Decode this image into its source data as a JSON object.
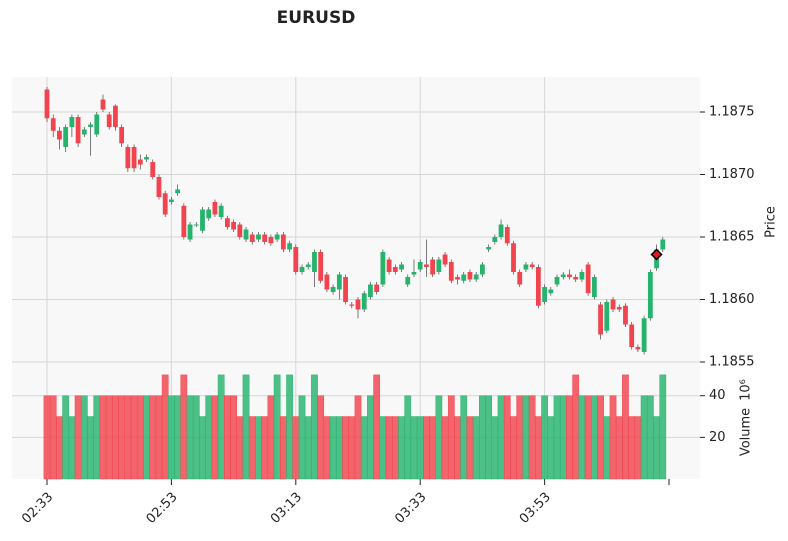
{
  "chart_data": {
    "type": "candlestick",
    "title": "EURUSD",
    "y_label": "Price",
    "volume_label": "Volume",
    "volume_exponent": "10⁶",
    "up_color": "#26b36d",
    "down_color": "#f2444e",
    "marker_color": "#e31a1c",
    "grid": true,
    "categories": [
      "02:33",
      null,
      null,
      null,
      null,
      null,
      null,
      null,
      null,
      null,
      null,
      null,
      null,
      null,
      null,
      null,
      null,
      null,
      null,
      null,
      "02:53",
      null,
      null,
      null,
      null,
      null,
      null,
      null,
      null,
      null,
      null,
      null,
      null,
      null,
      null,
      null,
      null,
      null,
      null,
      null,
      "03:13",
      null,
      null,
      null,
      null,
      null,
      null,
      null,
      null,
      null,
      null,
      null,
      null,
      null,
      null,
      null,
      null,
      null,
      null,
      null,
      "03:33",
      null,
      null,
      null,
      null,
      null,
      null,
      null,
      null,
      null,
      null,
      null,
      null,
      null,
      null,
      null,
      null,
      null,
      null,
      null,
      "03:53",
      null,
      null,
      null,
      null,
      null,
      null,
      null,
      null,
      null,
      null,
      null,
      null,
      null,
      null,
      null,
      null,
      null,
      null,
      null
    ],
    "ohlc": [
      [
        1.18768,
        1.1877,
        1.18742,
        1.18745
      ],
      [
        1.18745,
        1.18748,
        1.1873,
        1.18735
      ],
      [
        1.18735,
        1.18738,
        1.1872,
        1.18728
      ],
      [
        1.18722,
        1.1874,
        1.18718,
        1.18738
      ],
      [
        1.18738,
        1.18748,
        1.1873,
        1.18746
      ],
      [
        1.18746,
        1.18748,
        1.18722,
        1.18725
      ],
      [
        1.18732,
        1.18738,
        1.1873,
        1.18736
      ],
      [
        1.18738,
        1.18742,
        1.18715,
        1.1874
      ],
      [
        1.18732,
        1.1875,
        1.1873,
        1.18748
      ],
      [
        1.1876,
        1.18764,
        1.1875,
        1.18752
      ],
      [
        1.18748,
        1.1875,
        1.18736,
        1.18738
      ],
      [
        1.18755,
        1.18756,
        1.18735,
        1.18738
      ],
      [
        1.18738,
        1.1874,
        1.18722,
        1.18725
      ],
      [
        1.18722,
        1.18724,
        1.18702,
        1.18705
      ],
      [
        1.18722,
        1.18724,
        1.18702,
        1.18705
      ],
      [
        1.18712,
        1.18716,
        1.18704,
        1.18708
      ],
      [
        1.18712,
        1.18716,
        1.1871,
        1.18714
      ],
      [
        1.1871,
        1.18712,
        1.18696,
        1.18698
      ],
      [
        1.18698,
        1.187,
        1.1868,
        1.18682
      ],
      [
        1.18685,
        1.18687,
        1.18666,
        1.18668
      ],
      [
        1.18678,
        1.18682,
        1.18676,
        1.1868
      ],
      [
        1.18685,
        1.18692,
        1.18683,
        1.18688
      ],
      [
        1.18675,
        1.18677,
        1.18648,
        1.1865
      ],
      [
        1.18648,
        1.18662,
        1.18646,
        1.1866
      ],
      [
        1.1866,
        1.18662,
        1.18658,
        1.1866
      ],
      [
        1.18655,
        1.18674,
        1.18653,
        1.18672
      ],
      [
        1.18665,
        1.18674,
        1.18663,
        1.18672
      ],
      [
        1.18678,
        1.1868,
        1.18666,
        1.18668
      ],
      [
        1.18666,
        1.18677,
        1.18664,
        1.18675
      ],
      [
        1.18665,
        1.18667,
        1.18656,
        1.18658
      ],
      [
        1.18662,
        1.18664,
        1.18654,
        1.18656
      ],
      [
        1.1866,
        1.18662,
        1.18648,
        1.1865
      ],
      [
        1.18648,
        1.18658,
        1.18646,
        1.18656
      ],
      [
        1.18652,
        1.18654,
        1.18644,
        1.18646
      ],
      [
        1.18648,
        1.18654,
        1.18646,
        1.18652
      ],
      [
        1.18652,
        1.18654,
        1.18644,
        1.18646
      ],
      [
        1.1865,
        1.18652,
        1.18643,
        1.18645
      ],
      [
        1.18648,
        1.18654,
        1.18646,
        1.18652
      ],
      [
        1.18652,
        1.18654,
        1.18638,
        1.1864
      ],
      [
        1.1864,
        1.18647,
        1.18638,
        1.18645
      ],
      [
        1.18642,
        1.18644,
        1.1862,
        1.18622
      ],
      [
        1.18622,
        1.18628,
        1.1862,
        1.18626
      ],
      [
        1.18626,
        1.1863,
        1.18624,
        1.18628
      ],
      [
        1.18622,
        1.1864,
        1.1861,
        1.18638
      ],
      [
        1.18638,
        1.1864,
        1.18613,
        1.18615
      ],
      [
        1.1862,
        1.18622,
        1.18606,
        1.18608
      ],
      [
        1.18606,
        1.18612,
        1.18604,
        1.1861
      ],
      [
        1.18608,
        1.18622,
        1.186,
        1.1862
      ],
      [
        1.18618,
        1.1862,
        1.18596,
        1.18598
      ],
      [
        1.18596,
        1.18598,
        1.18593,
        1.18595
      ],
      [
        1.186,
        1.18602,
        1.18585,
        1.18592
      ],
      [
        1.18592,
        1.18607,
        1.1859,
        1.18605
      ],
      [
        1.18602,
        1.18614,
        1.186,
        1.18612
      ],
      [
        1.18612,
        1.18614,
        1.18604,
        1.18606
      ],
      [
        1.18612,
        1.1864,
        1.1861,
        1.18638
      ],
      [
        1.18632,
        1.18634,
        1.1862,
        1.18622
      ],
      [
        1.18626,
        1.18628,
        1.1862,
        1.18622
      ],
      [
        1.18624,
        1.1863,
        1.18622,
        1.18628
      ],
      [
        1.18612,
        1.1862,
        1.1861,
        1.18618
      ],
      [
        1.1862,
        1.18632,
        1.18618,
        1.18622
      ],
      [
        1.18624,
        1.18632,
        1.18622,
        1.1863
      ],
      [
        1.18628,
        1.18648,
        1.18618,
        1.18626
      ],
      [
        1.18632,
        1.18634,
        1.18618,
        1.1862
      ],
      [
        1.18622,
        1.18634,
        1.1862,
        1.18632
      ],
      [
        1.18636,
        1.18638,
        1.18626,
        1.18628
      ],
      [
        1.1863,
        1.18632,
        1.18613,
        1.18615
      ],
      [
        1.18618,
        1.1862,
        1.18612,
        1.18616
      ],
      [
        1.18615,
        1.18622,
        1.18613,
        1.1862
      ],
      [
        1.18622,
        1.18624,
        1.18614,
        1.18616
      ],
      [
        1.18616,
        1.18622,
        1.18614,
        1.1862
      ],
      [
        1.1862,
        1.1863,
        1.18618,
        1.18628
      ],
      [
        1.1864,
        1.18644,
        1.18638,
        1.18642
      ],
      [
        1.18646,
        1.18652,
        1.18644,
        1.1865
      ],
      [
        1.1865,
        1.18664,
        1.18648,
        1.1866
      ],
      [
        1.18658,
        1.1866,
        1.18643,
        1.18645
      ],
      [
        1.18645,
        1.18647,
        1.1862,
        1.18622
      ],
      [
        1.18622,
        1.18624,
        1.1861,
        1.18612
      ],
      [
        1.18624,
        1.1863,
        1.18622,
        1.18628
      ],
      [
        1.18628,
        1.1863,
        1.18624,
        1.18626
      ],
      [
        1.18626,
        1.18628,
        1.18593,
        1.18595
      ],
      [
        1.18598,
        1.18612,
        1.18596,
        1.1861
      ],
      [
        1.18605,
        1.1861,
        1.18603,
        1.18608
      ],
      [
        1.18612,
        1.1862,
        1.1861,
        1.18618
      ],
      [
        1.18618,
        1.18622,
        1.18616,
        1.1862
      ],
      [
        1.1862,
        1.18624,
        1.18616,
        1.18618
      ],
      [
        1.18618,
        1.1862,
        1.18614,
        1.18616
      ],
      [
        1.18616,
        1.18624,
        1.18614,
        1.18622
      ],
      [
        1.18628,
        1.1863,
        1.18603,
        1.18605
      ],
      [
        1.18602,
        1.1862,
        1.186,
        1.18618
      ],
      [
        1.18596,
        1.18598,
        1.18568,
        1.18572
      ],
      [
        1.18575,
        1.186,
        1.18573,
        1.18598
      ],
      [
        1.186,
        1.18602,
        1.1859,
        1.18592
      ],
      [
        1.18594,
        1.18596,
        1.1859,
        1.18592
      ],
      [
        1.18595,
        1.18597,
        1.18578,
        1.1858
      ],
      [
        1.1858,
        1.18582,
        1.1856,
        1.18562
      ],
      [
        1.18562,
        1.18564,
        1.18558,
        1.1856
      ],
      [
        1.18558,
        1.18587,
        1.18556,
        1.18585
      ],
      [
        1.18585,
        1.18624,
        1.18583,
        1.18622
      ],
      [
        1.18625,
        1.18644,
        1.18623,
        1.1864
      ],
      [
        1.1864,
        1.1865,
        1.18638,
        1.18648
      ]
    ],
    "volume": [
      40,
      40,
      30,
      40,
      30,
      40,
      40,
      30,
      40,
      40,
      40,
      40,
      40,
      40,
      40,
      40,
      40,
      40,
      40,
      50,
      40,
      40,
      50,
      40,
      40,
      30,
      40,
      40,
      50,
      40,
      40,
      30,
      50,
      30,
      30,
      30,
      40,
      50,
      30,
      50,
      30,
      40,
      30,
      50,
      40,
      30,
      30,
      30,
      30,
      30,
      40,
      30,
      40,
      50,
      30,
      30,
      30,
      30,
      40,
      30,
      30,
      30,
      30,
      40,
      30,
      40,
      30,
      40,
      30,
      30,
      40,
      40,
      30,
      40,
      40,
      30,
      40,
      40,
      40,
      30,
      40,
      30,
      40,
      40,
      40,
      50,
      40,
      40,
      40,
      40,
      30,
      40,
      30,
      50,
      30,
      30,
      40,
      40,
      30,
      50
    ],
    "markers": [
      null,
      null,
      null,
      null,
      null,
      null,
      null,
      null,
      null,
      null,
      null,
      null,
      null,
      null,
      null,
      null,
      null,
      null,
      null,
      null,
      null,
      null,
      null,
      null,
      null,
      null,
      null,
      null,
      null,
      null,
      null,
      null,
      null,
      null,
      null,
      null,
      null,
      null,
      null,
      null,
      null,
      null,
      null,
      null,
      null,
      null,
      null,
      null,
      null,
      null,
      null,
      null,
      null,
      null,
      null,
      null,
      null,
      null,
      null,
      null,
      null,
      null,
      null,
      null,
      null,
      null,
      null,
      null,
      null,
      null,
      null,
      null,
      null,
      null,
      null,
      null,
      null,
      null,
      null,
      null,
      null,
      null,
      null,
      null,
      null,
      null,
      null,
      null,
      null,
      null,
      null,
      null,
      null,
      null,
      null,
      null,
      null,
      null,
      1.18636,
      null
    ],
    "ylim": [
      1.1855,
      1.18778
    ],
    "yticks": [
      1.1855,
      {
        "value": 1.186,
        "label": "1.1860"
      },
      1.1865,
      {
        "value": 1.187,
        "label": "1.1870"
      },
      1.1875
    ],
    "volume_ylim": [
      0,
      56.2
    ],
    "volume_yticks": [
      20,
      40
    ]
  }
}
